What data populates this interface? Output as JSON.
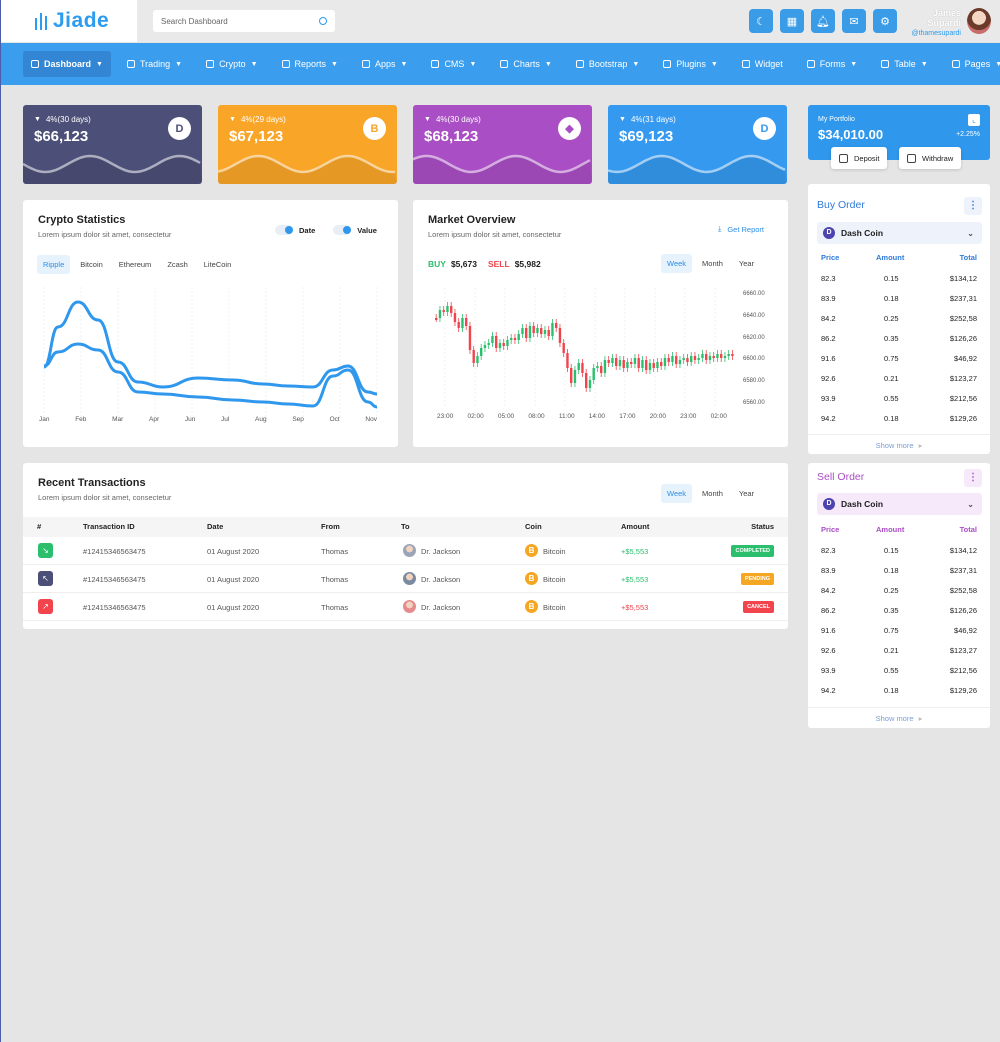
{
  "app": {
    "name": "Jiade"
  },
  "search": {
    "placeholder": "Search Dashboard"
  },
  "user": {
    "name": "James Supardi",
    "handle": "@thamesupardi"
  },
  "nav": [
    {
      "label": "Dashboard",
      "active": true,
      "caret": true
    },
    {
      "label": "Trading",
      "caret": true
    },
    {
      "label": "Crypto",
      "caret": true
    },
    {
      "label": "Reports",
      "caret": true
    },
    {
      "label": "Apps",
      "caret": true
    },
    {
      "label": "CMS",
      "caret": true
    },
    {
      "label": "Charts",
      "caret": true
    },
    {
      "label": "Bootstrap",
      "caret": true
    },
    {
      "label": "Plugins",
      "caret": true
    },
    {
      "label": "Widget",
      "caret": false
    },
    {
      "label": "Forms",
      "caret": true
    },
    {
      "label": "Table",
      "caret": true
    },
    {
      "label": "Pages",
      "caret": true
    }
  ],
  "stats": [
    {
      "pct": "4%(30 days)",
      "value": "$66,123",
      "icon": "dash-icon",
      "symbol": "D",
      "color": "#4c4f78"
    },
    {
      "pct": "4%(29 days)",
      "value": "$67,123",
      "icon": "bitcoin-icon",
      "symbol": "B",
      "color": "#f9a528"
    },
    {
      "pct": "4%(30 days)",
      "value": "$68,123",
      "icon": "ethereum-icon",
      "symbol": "◆",
      "color": "#a94ec4"
    },
    {
      "pct": "4%(31 days)",
      "value": "$69,123",
      "icon": "dash-icon",
      "symbol": "D",
      "color": "#3599ef"
    }
  ],
  "portfolio": {
    "label": "My Portfolio",
    "value": "$34,010.00",
    "change": "+2.25%",
    "deposit": "Deposit",
    "withdraw": "Withdraw"
  },
  "crypto_stats": {
    "title": "Crypto Statistics",
    "subtitle": "Lorem ipsum dolor sit amet, consectetur",
    "legend": [
      "Date",
      "Value"
    ],
    "tabs": [
      "Ripple",
      "Bitcoin",
      "Ethereum",
      "Zcash",
      "LiteCoin"
    ],
    "months": [
      "Jan",
      "Feb",
      "Mar",
      "Apr",
      "Jun",
      "Jul",
      "Aug",
      "Sep",
      "Oct",
      "Nov"
    ]
  },
  "market": {
    "title": "Market Overview",
    "subtitle": "Lorem ipsum dolor sit amet, consectetur",
    "get_report": "Get Report",
    "buy_label": "BUY",
    "buy_value": "$5,673",
    "sell_label": "SELL",
    "sell_value": "$5,982",
    "tabs": [
      "Week",
      "Month",
      "Year"
    ],
    "times": [
      "23:00",
      "02:00",
      "05:00",
      "08:00",
      "11:00",
      "14:00",
      "17:00",
      "20:00",
      "23:00",
      "02:00"
    ],
    "yticks": [
      "6660.00",
      "6640.00",
      "6620.00",
      "6600.00",
      "6580.00",
      "6560.00"
    ]
  },
  "transactions": {
    "title": "Recent Transactions",
    "subtitle": "Lorem ipsum dolor sit amet, consectetur",
    "tabs": [
      "Week",
      "Month",
      "Year"
    ],
    "headers": [
      "#",
      "Transaction ID",
      "Date",
      "From",
      "To",
      "Coin",
      "Amount",
      "Status"
    ],
    "rows": [
      {
        "id": "#12415346563475",
        "date": "01 August 2020",
        "from": "Thomas",
        "to": "Dr. Jackson",
        "coin": "Bitcoin",
        "amount": "+$5,553",
        "status": "COMPLETED",
        "status_color": "#2bbf6d",
        "icon_color": "#2bbf6d",
        "amount_color": "#2bbf6d"
      },
      {
        "id": "#12415346563475",
        "date": "01 August 2020",
        "from": "Thomas",
        "to": "Dr. Jackson",
        "coin": "Bitcoin",
        "amount": "+$5,553",
        "status": "PENDING",
        "status_color": "#f5a623",
        "icon_color": "#4c4f78",
        "amount_color": "#2bbf6d"
      },
      {
        "id": "#12415346563475",
        "date": "01 August 2020",
        "from": "Thomas",
        "to": "Dr. Jackson",
        "coin": "Bitcoin",
        "amount": "+$5,553",
        "status": "CANCEL",
        "status_color": "#f1444d",
        "icon_color": "#f1444d",
        "amount_color": "#f1444d"
      }
    ]
  },
  "buy_order": {
    "title": "Buy Order",
    "coin": "Dash Coin",
    "headers": [
      "Price",
      "Amount",
      "Total"
    ],
    "rows": [
      [
        "82.3",
        "0.15",
        "$134,12"
      ],
      [
        "83.9",
        "0.18",
        "$237,31"
      ],
      [
        "84.2",
        "0.25",
        "$252,58"
      ],
      [
        "86.2",
        "0.35",
        "$126,26"
      ],
      [
        "91.6",
        "0.75",
        "$46,92"
      ],
      [
        "92.6",
        "0.21",
        "$123,27"
      ],
      [
        "93.9",
        "0.55",
        "$212,56"
      ],
      [
        "94.2",
        "0.18",
        "$129,26"
      ]
    ],
    "show_more": "Show more"
  },
  "sell_order": {
    "title": "Sell Order",
    "coin": "Dash Coin",
    "headers": [
      "Price",
      "Amount",
      "Total"
    ],
    "rows": [
      [
        "82.3",
        "0.15",
        "$134,12"
      ],
      [
        "83.9",
        "0.18",
        "$237,31"
      ],
      [
        "84.2",
        "0.25",
        "$252,58"
      ],
      [
        "86.2",
        "0.35",
        "$126,26"
      ],
      [
        "91.6",
        "0.75",
        "$46,92"
      ],
      [
        "92.6",
        "0.21",
        "$123,27"
      ],
      [
        "93.9",
        "0.55",
        "$212,56"
      ],
      [
        "94.2",
        "0.18",
        "$129,26"
      ]
    ],
    "show_more": "Show more"
  },
  "colors": {
    "primary": "#3b9ded",
    "buy": "#2bbf6d",
    "sell": "#f1444d",
    "buy_title": "#2f7ad9",
    "sell_title": "#a94ec4"
  }
}
